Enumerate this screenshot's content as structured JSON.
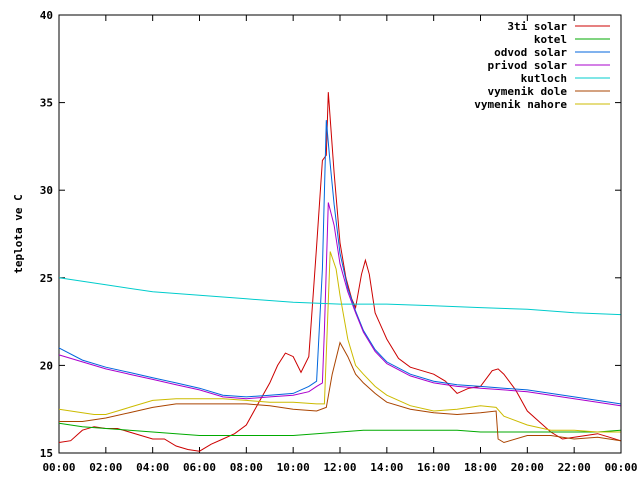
{
  "chart_data": {
    "type": "line",
    "title": "",
    "xlabel": "",
    "ylabel": "teplota ve C",
    "xlim": [
      "00:00",
      "00:00"
    ],
    "ylim": [
      15,
      40
    ],
    "x_ticks": [
      "00:00",
      "02:00",
      "04:00",
      "06:00",
      "08:00",
      "10:00",
      "12:00",
      "14:00",
      "16:00",
      "18:00",
      "20:00",
      "22:00",
      "00:00"
    ],
    "y_ticks": [
      "15",
      "20",
      "25",
      "30",
      "35",
      "40"
    ],
    "grid": false,
    "legend_position": "top-right",
    "series": [
      {
        "name": "3ti solar",
        "color": "#cc0000",
        "x": [
          "00:00",
          "00:30",
          "01:00",
          "01:30",
          "02:00",
          "02:30",
          "03:00",
          "03:30",
          "04:00",
          "04:30",
          "05:00",
          "05:30",
          "06:00",
          "06:30",
          "07:00",
          "07:30",
          "08:00",
          "08:30",
          "09:00",
          "09:20",
          "09:40",
          "10:00",
          "10:20",
          "10:40",
          "11:00",
          "11:15",
          "11:25",
          "11:30",
          "11:45",
          "12:00",
          "12:15",
          "12:30",
          "12:40",
          "12:55",
          "13:05",
          "13:15",
          "13:30",
          "14:00",
          "14:30",
          "15:00",
          "15:30",
          "16:00",
          "16:30",
          "17:00",
          "17:30",
          "18:00",
          "18:30",
          "18:45",
          "19:00",
          "19:30",
          "20:00",
          "20:30",
          "21:00",
          "21:30",
          "22:00",
          "22:30",
          "23:00",
          "23:30",
          "23:59"
        ],
        "y": [
          15.6,
          15.7,
          16.3,
          16.5,
          16.4,
          16.4,
          16.2,
          16.0,
          15.8,
          15.8,
          15.4,
          15.2,
          15.1,
          15.5,
          15.8,
          16.1,
          16.6,
          17.8,
          19.0,
          20.0,
          20.7,
          20.5,
          19.6,
          20.5,
          26.8,
          31.7,
          32.0,
          35.6,
          31.0,
          27.0,
          25.0,
          23.8,
          23.3,
          25.2,
          26.0,
          25.2,
          23.0,
          21.5,
          20.4,
          19.9,
          19.7,
          19.5,
          19.1,
          18.4,
          18.7,
          18.8,
          19.7,
          19.8,
          19.5,
          18.6,
          17.4,
          16.8,
          16.2,
          15.8,
          15.9,
          16.0,
          16.1,
          15.9,
          15.7
        ]
      },
      {
        "name": "kotel",
        "color": "#00aa00",
        "x": [
          "00:00",
          "01:00",
          "02:00",
          "03:00",
          "04:00",
          "05:00",
          "06:00",
          "07:00",
          "08:00",
          "09:00",
          "10:00",
          "11:00",
          "12:00",
          "13:00",
          "14:00",
          "15:00",
          "16:00",
          "17:00",
          "18:00",
          "19:00",
          "20:00",
          "21:00",
          "22:00",
          "23:00",
          "23:59"
        ],
        "y": [
          16.7,
          16.5,
          16.4,
          16.3,
          16.2,
          16.1,
          16.0,
          16.0,
          16.0,
          16.0,
          16.0,
          16.1,
          16.2,
          16.3,
          16.3,
          16.3,
          16.3,
          16.3,
          16.2,
          16.2,
          16.2,
          16.2,
          16.2,
          16.2,
          16.3
        ]
      },
      {
        "name": "odvod solar",
        "color": "#0066dd",
        "x": [
          "00:00",
          "01:00",
          "02:00",
          "03:00",
          "04:00",
          "05:00",
          "06:00",
          "07:00",
          "08:00",
          "09:00",
          "10:00",
          "10:40",
          "11:00",
          "11:15",
          "11:25",
          "11:35",
          "11:45",
          "12:00",
          "12:20",
          "12:40",
          "13:00",
          "13:30",
          "14:00",
          "15:00",
          "16:00",
          "17:00",
          "18:00",
          "19:00",
          "20:00",
          "21:00",
          "22:00",
          "23:00",
          "23:59"
        ],
        "y": [
          21.0,
          20.3,
          19.9,
          19.6,
          19.3,
          19.0,
          18.7,
          18.3,
          18.2,
          18.3,
          18.4,
          18.8,
          19.1,
          25.5,
          34.0,
          31.5,
          29.2,
          26.4,
          24.4,
          23.1,
          22.0,
          20.9,
          20.2,
          19.5,
          19.1,
          18.9,
          18.8,
          18.7,
          18.6,
          18.4,
          18.2,
          18.0,
          17.8
        ]
      },
      {
        "name": "privod solar",
        "color": "#aa00cc",
        "x": [
          "00:00",
          "01:00",
          "02:00",
          "03:00",
          "04:00",
          "05:00",
          "06:00",
          "07:00",
          "08:00",
          "09:00",
          "10:00",
          "10:40",
          "11:00",
          "11:15",
          "11:20",
          "11:30",
          "11:45",
          "12:00",
          "12:20",
          "12:40",
          "13:00",
          "13:30",
          "14:00",
          "15:00",
          "16:00",
          "17:00",
          "18:00",
          "19:00",
          "20:00",
          "21:00",
          "22:00",
          "23:00",
          "23:59"
        ],
        "y": [
          20.6,
          20.2,
          19.8,
          19.5,
          19.2,
          18.9,
          18.6,
          18.2,
          18.1,
          18.2,
          18.3,
          18.5,
          18.8,
          19.0,
          22.0,
          29.3,
          28.0,
          25.8,
          24.2,
          23.0,
          21.9,
          20.8,
          20.1,
          19.4,
          19.0,
          18.8,
          18.7,
          18.6,
          18.5,
          18.3,
          18.1,
          17.9,
          17.7
        ]
      },
      {
        "name": "kutloch",
        "color": "#00cccc",
        "x": [
          "00:00",
          "02:00",
          "04:00",
          "06:00",
          "08:00",
          "10:00",
          "12:00",
          "14:00",
          "16:00",
          "18:00",
          "20:00",
          "22:00",
          "23:59"
        ],
        "y": [
          25.0,
          24.6,
          24.2,
          24.0,
          23.8,
          23.6,
          23.5,
          23.5,
          23.4,
          23.3,
          23.2,
          23.0,
          22.9
        ]
      },
      {
        "name": "vymenik dole",
        "color": "#aa4400",
        "x": [
          "00:00",
          "01:00",
          "02:00",
          "03:00",
          "04:00",
          "05:00",
          "06:00",
          "07:00",
          "08:00",
          "09:00",
          "10:00",
          "11:00",
          "11:25",
          "11:40",
          "12:00",
          "12:20",
          "12:40",
          "13:00",
          "13:30",
          "14:00",
          "15:00",
          "16:00",
          "17:00",
          "18:00",
          "18:40",
          "18:45",
          "19:00",
          "20:00",
          "21:00",
          "22:00",
          "23:00",
          "23:59"
        ],
        "y": [
          16.8,
          16.8,
          17.0,
          17.3,
          17.6,
          17.8,
          17.8,
          17.8,
          17.8,
          17.7,
          17.5,
          17.4,
          17.6,
          19.5,
          21.3,
          20.5,
          19.5,
          19.0,
          18.4,
          17.9,
          17.5,
          17.3,
          17.2,
          17.3,
          17.4,
          15.8,
          15.6,
          16.0,
          16.0,
          15.8,
          15.9,
          15.7
        ]
      },
      {
        "name": "vymenik nahore",
        "color": "#ccbb00",
        "x": [
          "00:00",
          "01:00",
          "01:30",
          "02:00",
          "02:30",
          "03:00",
          "04:00",
          "05:00",
          "06:00",
          "07:00",
          "08:00",
          "09:00",
          "10:00",
          "11:00",
          "11:20",
          "11:35",
          "11:50",
          "12:00",
          "12:20",
          "12:40",
          "13:00",
          "13:30",
          "14:00",
          "15:00",
          "16:00",
          "17:00",
          "18:00",
          "18:40",
          "19:00",
          "20:00",
          "21:00",
          "22:00",
          "23:00",
          "23:59"
        ],
        "y": [
          17.5,
          17.3,
          17.2,
          17.2,
          17.4,
          17.6,
          18.0,
          18.1,
          18.1,
          18.1,
          18.0,
          17.9,
          17.9,
          17.8,
          17.8,
          26.5,
          25.5,
          24.0,
          21.5,
          20.0,
          19.5,
          18.8,
          18.3,
          17.7,
          17.4,
          17.5,
          17.7,
          17.6,
          17.1,
          16.6,
          16.3,
          16.3,
          16.2,
          16.2
        ]
      }
    ]
  }
}
